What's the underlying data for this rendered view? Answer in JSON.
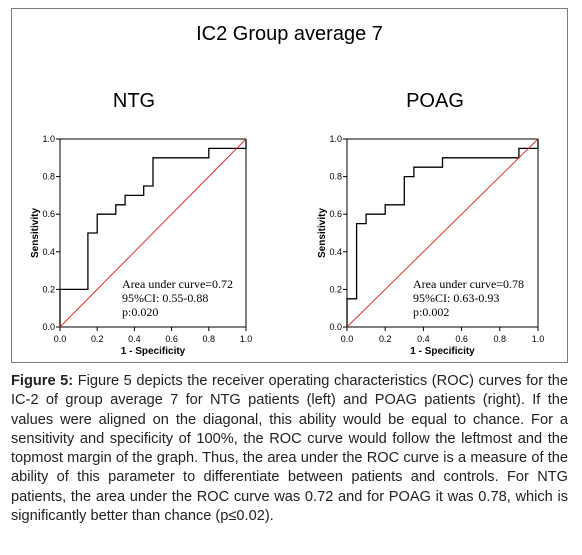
{
  "figure_title": "IC2 Group average 7",
  "caption": {
    "label": "Figure 5:",
    "text": "Figure 5 depicts the receiver operating characteristics (ROC) curves for the IC-2 of group average 7 for NTG patients (left) and POAG patients (right). If the values were aligned on the diagonal, this ability would be equal to chance. For a sensitivity and specificity of 100%, the ROC curve would follow the leftmost and the topmost margin of the graph. Thus, the area under the ROC curve is a measure of the ability of this parameter to differentiate between patients and controls. For NTG patients, the area under the ROC curve was 0.72 and for POAG it was 0.78, which is significantly better than chance (p≤0.02)."
  },
  "colors": {
    "curve": "#000000",
    "diagonal": "#e03030",
    "frame": "#7a7a7a"
  },
  "chart_data": [
    {
      "type": "line",
      "title": "NTG",
      "xlabel": "1 - Specificity",
      "ylabel": "Sensitivity",
      "xlim": [
        0,
        1
      ],
      "ylim": [
        0,
        1
      ],
      "xticks": [
        "0.0",
        "0.2",
        "0.4",
        "0.6",
        "0.8",
        "1.0"
      ],
      "yticks": [
        "0.0",
        "0.2",
        "0.4",
        "0.6",
        "0.8",
        "1.0"
      ],
      "annotations": [
        "Area under curve=0.72",
        "95%CI: 0.55-0.88",
        "p:0.020"
      ],
      "series": [
        {
          "kind": "roc",
          "x": [
            0,
            0,
            0.15,
            0.15,
            0.2,
            0.2,
            0.3,
            0.3,
            0.35,
            0.35,
            0.45,
            0.45,
            0.5,
            0.5,
            0.8,
            0.8,
            1.0,
            1.0
          ],
          "y": [
            0,
            0.2,
            0.2,
            0.5,
            0.5,
            0.6,
            0.6,
            0.65,
            0.65,
            0.7,
            0.7,
            0.75,
            0.75,
            0.9,
            0.9,
            0.95,
            0.95,
            1.0
          ]
        },
        {
          "kind": "reference",
          "x": [
            0,
            1
          ],
          "y": [
            0,
            1
          ]
        }
      ]
    },
    {
      "type": "line",
      "title": "POAG",
      "xlabel": "1 - Specificity",
      "ylabel": "Sensitivity",
      "xlim": [
        0,
        1
      ],
      "ylim": [
        0,
        1
      ],
      "xticks": [
        "0.0",
        "0.2",
        "0.4",
        "0.6",
        "0.8",
        "1.0"
      ],
      "yticks": [
        "0.0",
        "0.2",
        "0.4",
        "0.6",
        "0.8",
        "1.0"
      ],
      "annotations": [
        "Area under curve=0.78",
        "95%CI: 0.63-0.93",
        "p:0.002"
      ],
      "series": [
        {
          "kind": "roc",
          "x": [
            0,
            0,
            0.05,
            0.05,
            0.1,
            0.1,
            0.2,
            0.2,
            0.3,
            0.3,
            0.35,
            0.35,
            0.5,
            0.5,
            0.9,
            0.9,
            1.0,
            1.0
          ],
          "y": [
            0,
            0.15,
            0.15,
            0.55,
            0.55,
            0.6,
            0.6,
            0.65,
            0.65,
            0.8,
            0.8,
            0.85,
            0.85,
            0.9,
            0.9,
            0.95,
            0.95,
            1.0
          ]
        },
        {
          "kind": "reference",
          "x": [
            0,
            1
          ],
          "y": [
            0,
            1
          ]
        }
      ]
    }
  ]
}
